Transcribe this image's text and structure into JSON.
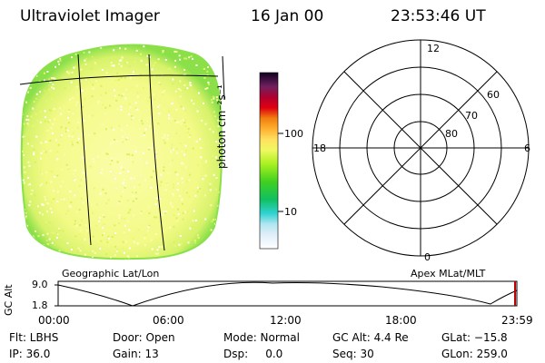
{
  "header": {
    "title": "Ultraviolet Imager",
    "date": "16 Jan 00",
    "time": "23:53:46 UT"
  },
  "colorbar": {
    "unit_label": "photon cm⁻²s⁻¹",
    "ticks": [
      "100",
      "10"
    ]
  },
  "left_panel": {
    "caption": "Geographic Lat/Lon"
  },
  "right_panel": {
    "caption": "Apex MLat/MLT",
    "mlt_labels": {
      "top": "12",
      "left": "18",
      "right": "6",
      "bottom": "0"
    },
    "mlat_labels": [
      "60",
      "70",
      "80"
    ]
  },
  "gc_alt_plot": {
    "ylabel": "GC Alt",
    "yticks": [
      "9.0",
      "1.8"
    ],
    "xticks": [
      "00:00",
      "06:00",
      "12:00",
      "18:00",
      "23:59"
    ]
  },
  "status": {
    "flt": "Flt: LBHS",
    "door": "Door: Open",
    "mode": "Mode: Normal",
    "gcalt": "GC Alt: 4.4 Re",
    "glat": "GLat: −15.8",
    "ip": "IP: 36.0",
    "gain": "Gain: 13",
    "dsp": "Dsp:     0.0",
    "seq": "Seq: 30",
    "glon": "GLon: 259.0"
  },
  "colors": {
    "disc_fill": "#f6fb8a",
    "disc_edge": "#8be04a",
    "marker": "#c00000"
  }
}
